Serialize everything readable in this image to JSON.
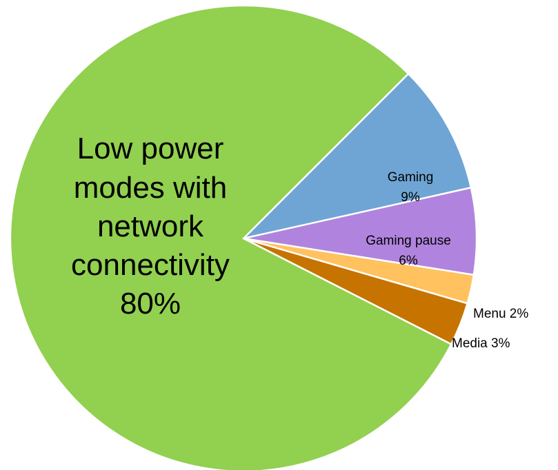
{
  "chart_data": {
    "type": "pie",
    "title": "",
    "slices": [
      {
        "label": "Low power modes with network connectivity",
        "value": 80,
        "value_label": "80%",
        "color": "#92D050"
      },
      {
        "label": "Gaming",
        "value": 9,
        "value_label": "9%",
        "color": "#6FA5D4"
      },
      {
        "label": "Gaming pause",
        "value": 6,
        "value_label": "6%",
        "color": "#B084DE"
      },
      {
        "label": "Menu",
        "value": 2,
        "value_label": "2%",
        "color": "#FFC25F"
      },
      {
        "label": "Media",
        "value": 3,
        "value_label": "3%",
        "color": "#C77300"
      }
    ],
    "legend": "none"
  },
  "labels": {
    "low_power_line1": "Low power",
    "low_power_line2": "modes with",
    "low_power_line3": "network",
    "low_power_line4": "connectivity",
    "low_power_value": "80%",
    "gaming_name": "Gaming",
    "gaming_value": "9%",
    "gaming_pause_name": "Gaming pause",
    "gaming_pause_value": "6%",
    "menu": "Menu  2%",
    "media": "Media  3%"
  }
}
